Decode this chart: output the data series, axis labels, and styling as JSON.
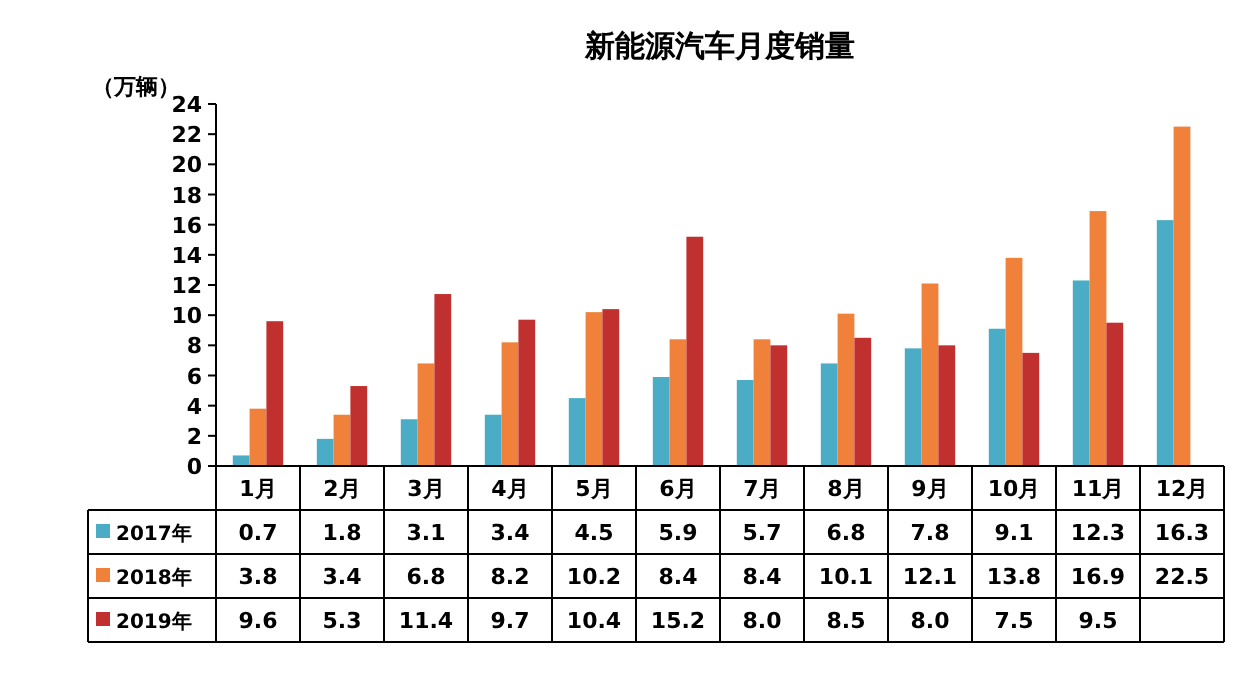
{
  "chart_data": {
    "type": "bar",
    "title": "新能源汽车月度销量",
    "ylabel": "（万辆）",
    "categories": [
      "1月",
      "2月",
      "3月",
      "4月",
      "5月",
      "6月",
      "7月",
      "8月",
      "9月",
      "10月",
      "11月",
      "12月"
    ],
    "series": [
      {
        "name": "2017年",
        "color": "#4bacc6",
        "values": [
          0.7,
          1.8,
          3.1,
          3.4,
          4.5,
          5.9,
          5.7,
          6.8,
          7.8,
          9.1,
          12.3,
          16.3
        ],
        "value_labels": [
          "0.7",
          "1.8",
          "3.1",
          "3.4",
          "4.5",
          "5.9",
          "5.7",
          "6.8",
          "7.8",
          "9.1",
          "12.3",
          "16.3"
        ]
      },
      {
        "name": "2018年",
        "color": "#f0813a",
        "values": [
          3.8,
          3.4,
          6.8,
          8.2,
          10.2,
          8.4,
          8.4,
          10.1,
          12.1,
          13.8,
          16.9,
          22.5
        ],
        "value_labels": [
          "3.8",
          "3.4",
          "6.8",
          "8.2",
          "10.2",
          "8.4",
          "8.4",
          "10.1",
          "12.1",
          "13.8",
          "16.9",
          "22.5"
        ]
      },
      {
        "name": "2019年",
        "color": "#c0302e",
        "values": [
          9.6,
          5.3,
          11.4,
          9.7,
          10.4,
          15.2,
          8.0,
          8.5,
          8.0,
          7.5,
          9.5,
          null
        ],
        "value_labels": [
          "9.6",
          "5.3",
          "11.4",
          "9.7",
          "10.4",
          "15.2",
          "8.0",
          "8.5",
          "8.0",
          "7.5",
          "9.5",
          null
        ]
      }
    ],
    "ylim": [
      0,
      24
    ],
    "yticks": [
      0,
      2,
      4,
      6,
      8,
      10,
      12,
      14,
      16,
      18,
      20,
      22,
      24
    ],
    "legend": "bottom"
  }
}
